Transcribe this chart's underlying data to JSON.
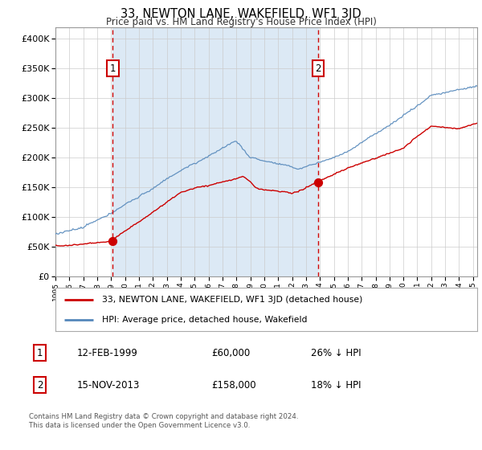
{
  "title": "33, NEWTON LANE, WAKEFIELD, WF1 3JD",
  "subtitle": "Price paid vs. HM Land Registry's House Price Index (HPI)",
  "legend_entry1": "33, NEWTON LANE, WAKEFIELD, WF1 3JD (detached house)",
  "legend_entry2": "HPI: Average price, detached house, Wakefield",
  "annotation1_date": "12-FEB-1999",
  "annotation1_price": "£60,000",
  "annotation1_hpi": "26% ↓ HPI",
  "annotation2_date": "15-NOV-2013",
  "annotation2_price": "£158,000",
  "annotation2_hpi": "18% ↓ HPI",
  "footnote1": "Contains HM Land Registry data © Crown copyright and database right 2024.",
  "footnote2": "This data is licensed under the Open Government Licence v3.0.",
  "red_color": "#cc0000",
  "blue_color": "#5588bb",
  "bg_color": "#dce9f5",
  "vline_color": "#cc0000",
  "marker1_year": 1999.12,
  "marker1_value": 60000,
  "marker2_year": 2013.88,
  "marker2_value": 158000,
  "ylim_max": 420000,
  "ylim_min": 0,
  "xmin": 1995,
  "xmax": 2025.3
}
